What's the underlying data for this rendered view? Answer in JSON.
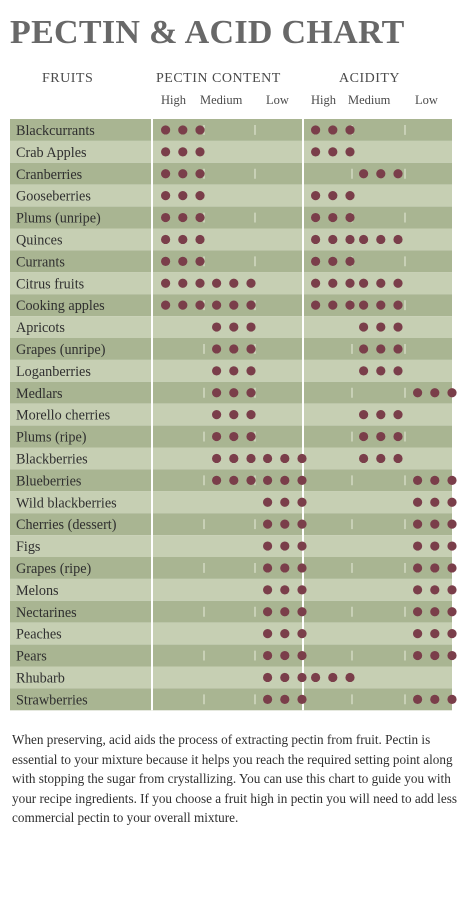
{
  "chart_data": {
    "type": "table",
    "title": "PECTIN & ACID CHART",
    "column_groups": [
      {
        "key": "fruits",
        "label": "FRUITS"
      },
      {
        "key": "pectin",
        "label": "PECTIN CONTENT",
        "levels": [
          "High",
          "Medium",
          "Low"
        ]
      },
      {
        "key": "acidity",
        "label": "ACIDITY",
        "levels": [
          "High",
          "Medium",
          "Low"
        ]
      }
    ],
    "rows": [
      {
        "fruit": "Blackcurrants",
        "pectin": [
          "High"
        ],
        "acidity": [
          "High"
        ]
      },
      {
        "fruit": "Crab Apples",
        "pectin": [
          "High"
        ],
        "acidity": [
          "High"
        ]
      },
      {
        "fruit": "Cranberries",
        "pectin": [
          "High"
        ],
        "acidity": [
          "Medium"
        ]
      },
      {
        "fruit": "Gooseberries",
        "pectin": [
          "High"
        ],
        "acidity": [
          "High"
        ]
      },
      {
        "fruit": "Plums (unripe)",
        "pectin": [
          "High"
        ],
        "acidity": [
          "High"
        ]
      },
      {
        "fruit": "Quinces",
        "pectin": [
          "High"
        ],
        "acidity": [
          "High",
          "Medium"
        ]
      },
      {
        "fruit": "Currants",
        "pectin": [
          "High"
        ],
        "acidity": [
          "High"
        ]
      },
      {
        "fruit": "Citrus fruits",
        "pectin": [
          "High",
          "Medium"
        ],
        "acidity": [
          "High",
          "Medium"
        ]
      },
      {
        "fruit": "Cooking apples",
        "pectin": [
          "High",
          "Medium"
        ],
        "acidity": [
          "High",
          "Medium"
        ]
      },
      {
        "fruit": "Apricots",
        "pectin": [
          "Medium"
        ],
        "acidity": [
          "Medium"
        ]
      },
      {
        "fruit": "Grapes (unripe)",
        "pectin": [
          "Medium"
        ],
        "acidity": [
          "Medium"
        ]
      },
      {
        "fruit": "Loganberries",
        "pectin": [
          "Medium"
        ],
        "acidity": [
          "Medium"
        ]
      },
      {
        "fruit": "Medlars",
        "pectin": [
          "Medium"
        ],
        "acidity": [
          "Low"
        ]
      },
      {
        "fruit": "Morello cherries",
        "pectin": [
          "Medium"
        ],
        "acidity": [
          "Medium"
        ]
      },
      {
        "fruit": "Plums (ripe)",
        "pectin": [
          "Medium"
        ],
        "acidity": [
          "Medium"
        ]
      },
      {
        "fruit": "Blackberries",
        "pectin": [
          "Medium",
          "Low"
        ],
        "acidity": [
          "Medium"
        ]
      },
      {
        "fruit": "Blueberries",
        "pectin": [
          "Medium",
          "Low"
        ],
        "acidity": [
          "Low"
        ]
      },
      {
        "fruit": "Wild blackberries",
        "pectin": [
          "Low"
        ],
        "acidity": [
          "Low"
        ]
      },
      {
        "fruit": "Cherries (dessert)",
        "pectin": [
          "Low"
        ],
        "acidity": [
          "Low"
        ]
      },
      {
        "fruit": "Figs",
        "pectin": [
          "Low"
        ],
        "acidity": [
          "Low"
        ]
      },
      {
        "fruit": "Grapes (ripe)",
        "pectin": [
          "Low"
        ],
        "acidity": [
          "Low"
        ]
      },
      {
        "fruit": "Melons",
        "pectin": [
          "Low"
        ],
        "acidity": [
          "Low"
        ]
      },
      {
        "fruit": "Nectarines",
        "pectin": [
          "Low"
        ],
        "acidity": [
          "Low"
        ]
      },
      {
        "fruit": "Peaches",
        "pectin": [
          "Low"
        ],
        "acidity": [
          "Low"
        ]
      },
      {
        "fruit": "Pears",
        "pectin": [
          "Low"
        ],
        "acidity": [
          "Low"
        ]
      },
      {
        "fruit": "Rhubarb",
        "pectin": [
          "Low"
        ],
        "acidity": [
          "High"
        ]
      },
      {
        "fruit": "Strawberries",
        "pectin": [
          "Low"
        ],
        "acidity": [
          "Low"
        ]
      }
    ],
    "colors": {
      "dot": "#7a3e4a",
      "row_dark": "#a9b592",
      "row_light": "#c6cfb3",
      "divider": "#ffffff",
      "title": "#686868"
    }
  },
  "note": "When preserving, acid aids the process of extracting pectin from fruit. Pectin is essential to your mixture because it helps you reach the required setting point along with stopping the sugar from crystallizing. You can use this chart to guide you with your recipe ingredients. If you choose a fruit high in pectin you will need to add less commercial pectin to your overall mixture."
}
